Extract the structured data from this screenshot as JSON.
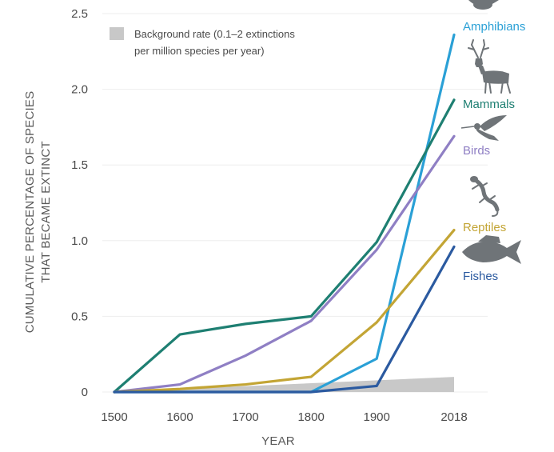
{
  "chart_data": {
    "type": "line",
    "xlabel": "YEAR",
    "ylabel_lines": [
      "CUMULATIVE PERCENTAGE OF SPECIES",
      "THAT BECAME EXTINCT"
    ],
    "x_ticks": [
      "1500",
      "1600",
      "1700",
      "1800",
      "1900",
      "2018"
    ],
    "y_ticks": [
      "0",
      "0.5",
      "1.0",
      "1.5",
      "2.0",
      "2.5"
    ],
    "xlim": [
      1500,
      2018
    ],
    "ylim": [
      0,
      2.5
    ],
    "grid": true,
    "legend": {
      "label_lines": [
        "Background rate (0.1–2 extinctions",
        "per million species per year)"
      ],
      "color": "#c8c8c8",
      "placement": "top-left"
    },
    "background_rate": {
      "x": [
        1500,
        2018
      ],
      "y_start": 0.0,
      "y_end": 0.1
    },
    "series": [
      {
        "name": "Amphibians",
        "color": "#2aa0d6",
        "icon": "frog-icon",
        "x": [
          1500,
          1600,
          1700,
          1800,
          1900,
          2018
        ],
        "y": [
          0,
          0,
          0,
          0,
          0.22,
          2.36
        ]
      },
      {
        "name": "Mammals",
        "color": "#1e7f72",
        "icon": "deer-icon",
        "x": [
          1500,
          1600,
          1700,
          1800,
          1900,
          2018
        ],
        "y": [
          0,
          0.38,
          0.45,
          0.5,
          0.99,
          1.93
        ]
      },
      {
        "name": "Birds",
        "color": "#8f7fc4",
        "icon": "hummingbird-icon",
        "x": [
          1500,
          1600,
          1700,
          1800,
          1900,
          2018
        ],
        "y": [
          0,
          0.05,
          0.24,
          0.47,
          0.94,
          1.69
        ]
      },
      {
        "name": "Reptiles",
        "color": "#c3a535",
        "icon": "lizard-icon",
        "x": [
          1500,
          1600,
          1700,
          1800,
          1900,
          2018
        ],
        "y": [
          0,
          0.02,
          0.05,
          0.1,
          0.46,
          1.07
        ]
      },
      {
        "name": "Fishes",
        "color": "#2b5aa0",
        "icon": "fish-icon",
        "x": [
          1500,
          1600,
          1700,
          1800,
          1900,
          2018
        ],
        "y": [
          0,
          0,
          0,
          0,
          0.04,
          0.96
        ]
      }
    ]
  }
}
